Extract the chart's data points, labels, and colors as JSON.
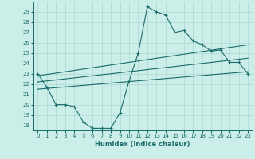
{
  "title": "",
  "xlabel": "Humidex (Indice chaleur)",
  "bg_color": "#cceee8",
  "grid_color": "#aad8d0",
  "line_color": "#1a6b6b",
  "xlim": [
    -0.5,
    23.5
  ],
  "ylim": [
    17.5,
    30.0
  ],
  "xticks": [
    0,
    1,
    2,
    3,
    4,
    5,
    6,
    7,
    8,
    9,
    10,
    11,
    12,
    13,
    14,
    15,
    16,
    17,
    18,
    19,
    20,
    21,
    22,
    23
  ],
  "yticks": [
    18,
    19,
    20,
    21,
    22,
    23,
    24,
    25,
    26,
    27,
    28,
    29
  ],
  "line1_x": [
    0,
    1,
    2,
    3,
    4,
    5,
    6,
    7,
    8,
    9,
    10,
    11,
    12,
    13,
    14,
    15,
    16,
    17,
    18,
    19,
    20,
    21,
    22,
    23
  ],
  "line1_y": [
    23.0,
    21.7,
    20.0,
    20.0,
    19.8,
    18.3,
    17.7,
    17.7,
    17.7,
    19.2,
    22.3,
    25.0,
    29.5,
    29.0,
    28.7,
    27.0,
    27.2,
    26.2,
    25.8,
    25.2,
    25.3,
    24.1,
    24.1,
    23.0
  ],
  "line2_x": [
    0,
    23
  ],
  "line2_y": [
    22.8,
    25.8
  ],
  "line3_x": [
    0,
    23
  ],
  "line3_y": [
    21.5,
    23.2
  ],
  "line4_x": [
    0,
    23
  ],
  "line4_y": [
    22.2,
    24.5
  ]
}
